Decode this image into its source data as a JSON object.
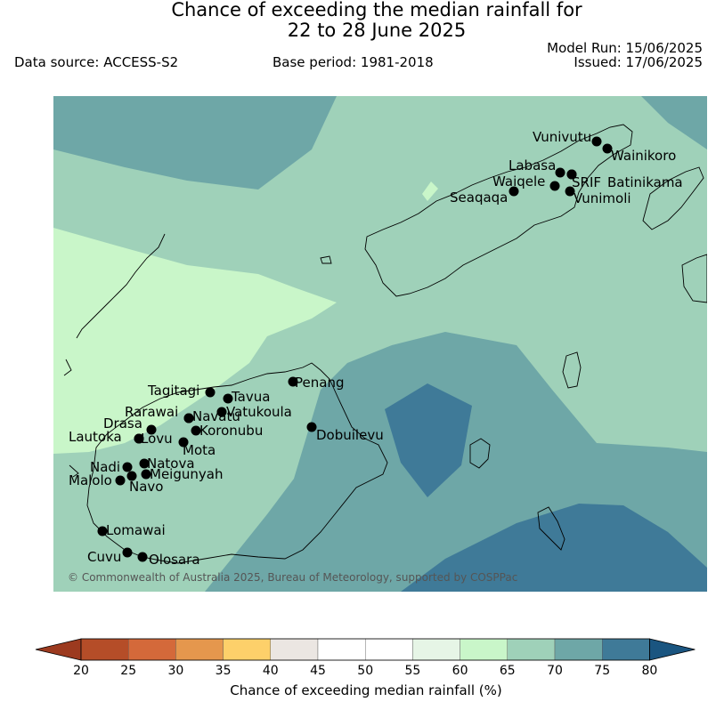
{
  "header": {
    "title_line1": "Chance of exceeding the median rainfall for",
    "title_line2": "22 to 28 June 2025",
    "data_source": "Data source: ACCESS-S2",
    "base_period": "Base period: 1981-2018",
    "model_run": "Model Run: 15/06/2025",
    "issued": "Issued: 17/06/2025"
  },
  "map": {
    "copyright": "© Commonwealth of Australia 2025, Bureau of Meteorology, supported by COSPPac",
    "zone_colors": {
      "60-65": "#c9f6c9",
      "65-70": "#9fd1b9",
      "70-75": "#6ea7a7",
      "75-80": "#3f7a98"
    },
    "stations": [
      "Vunivutu",
      "Wainikoro",
      "Labasa",
      "SRIF",
      "Batinikama",
      "Waiqele",
      "Seaqaqa",
      "Vunimoli",
      "Tagitagi",
      "Tavua",
      "Penang",
      "Rarawai",
      "Navatu",
      "Vatukoula",
      "Drasa",
      "Koronubu",
      "Lautoka",
      "Lovu",
      "Mota",
      "Dobuilevu",
      "Natova",
      "Nadi",
      "Meigunyah",
      "Malolo",
      "Navo",
      "Lomawai",
      "Cuvu",
      "Olosara"
    ]
  },
  "colorbar": {
    "title": "Chance of exceeding median rainfall (%)",
    "ticks": [
      "20",
      "25",
      "30",
      "35",
      "40",
      "45",
      "50",
      "55",
      "60",
      "65",
      "70",
      "75",
      "80"
    ],
    "colors": [
      "#9c3a1f",
      "#b54d28",
      "#d4693a",
      "#e5974d",
      "#fdd06a",
      "#ebe6e2",
      "#ffffff",
      "#ffffff",
      "#e6f5e6",
      "#c9f6c9",
      "#9fd1b9",
      "#6ea7a7",
      "#3f7a98",
      "#1a5580"
    ]
  }
}
